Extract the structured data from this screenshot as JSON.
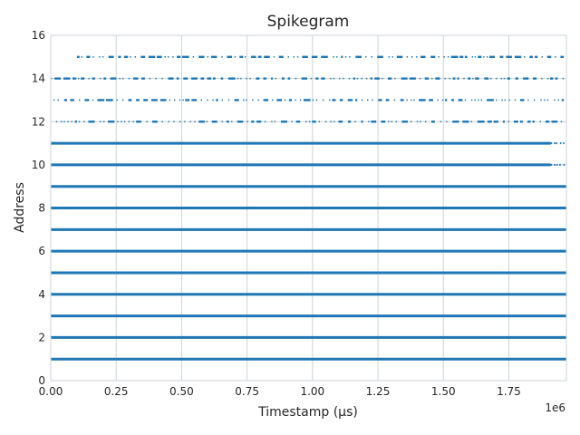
{
  "chart_data": {
    "type": "scatter",
    "title": "Spikegram",
    "xlabel": "Timestamp ($\\mu$s)",
    "xlabel_display": "Timestamp (μs)",
    "ylabel": "Address",
    "x_offset_label": "1e6",
    "xlim": [
      0,
      1970000
    ],
    "ylim": [
      0,
      16
    ],
    "x_ticks": [
      0,
      250000,
      500000,
      750000,
      1000000,
      1250000,
      1500000,
      1750000
    ],
    "x_tick_labels": [
      "0.00",
      "0.25",
      "0.50",
      "0.75",
      "1.00",
      "1.25",
      "1.50",
      "1.75"
    ],
    "y_ticks": [
      0,
      2,
      4,
      6,
      8,
      10,
      12,
      14,
      16
    ],
    "y_tick_labels": [
      "0",
      "2",
      "4",
      "6",
      "8",
      "10",
      "12",
      "14",
      "16"
    ],
    "grid": true,
    "marker_color": "#1f77b4",
    "series": [
      {
        "address": 1,
        "pattern": "dense",
        "x_start": 0,
        "x_end": 1970000
      },
      {
        "address": 2,
        "pattern": "dense",
        "x_start": 0,
        "x_end": 1970000
      },
      {
        "address": 3,
        "pattern": "dense",
        "x_start": 0,
        "x_end": 1970000
      },
      {
        "address": 4,
        "pattern": "dense",
        "x_start": 0,
        "x_end": 1970000
      },
      {
        "address": 5,
        "pattern": "dense",
        "x_start": 0,
        "x_end": 1970000
      },
      {
        "address": 6,
        "pattern": "dense",
        "x_start": 0,
        "x_end": 1970000
      },
      {
        "address": 7,
        "pattern": "dense",
        "x_start": 0,
        "x_end": 1970000
      },
      {
        "address": 8,
        "pattern": "dense",
        "x_start": 0,
        "x_end": 1970000
      },
      {
        "address": 9,
        "pattern": "dense",
        "x_start": 0,
        "x_end": 1970000
      },
      {
        "address": 10,
        "pattern": "dense",
        "x_start": 0,
        "x_end": 1910000,
        "sparse_tail_end": 1960000
      },
      {
        "address": 11,
        "pattern": "dense",
        "x_start": 0,
        "x_end": 1910000,
        "sparse_tail_end": 1960000
      },
      {
        "address": 12,
        "pattern": "sparse",
        "x_start": 20000,
        "x_end": 1960000
      },
      {
        "address": 13,
        "pattern": "sparse",
        "x_start": 10000,
        "x_end": 1960000
      },
      {
        "address": 14,
        "pattern": "sparse",
        "x_start": 0,
        "x_end": 1960000
      },
      {
        "address": 15,
        "pattern": "sparse",
        "x_start": 100000,
        "x_end": 1960000
      }
    ]
  }
}
